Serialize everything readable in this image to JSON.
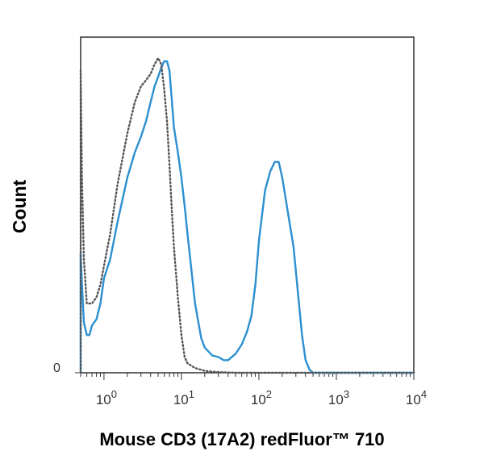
{
  "chart_data": {
    "type": "line",
    "xlabel": "Mouse CD3 (17A2) redFluor™ 710",
    "ylabel": "Count",
    "x_scale": "log",
    "xlim": [
      0.5,
      10000
    ],
    "ylim": [
      0,
      100
    ],
    "y_ticks": [
      {
        "value": 0,
        "label": "0"
      }
    ],
    "x_ticks": [
      {
        "value": 1,
        "base": "10",
        "exp": "0"
      },
      {
        "value": 10,
        "base": "10",
        "exp": "1"
      },
      {
        "value": 100,
        "base": "10",
        "exp": "2"
      },
      {
        "value": 1000,
        "base": "10",
        "exp": "3"
      },
      {
        "value": 10000,
        "base": "10",
        "exp": "4"
      }
    ],
    "grid": false,
    "series": [
      {
        "style": "solid",
        "color": "#2b8fd0",
        "points": [
          [
            0.5,
            0
          ],
          [
            0.5,
            38
          ],
          [
            0.52,
            28
          ],
          [
            0.55,
            16
          ],
          [
            0.6,
            12
          ],
          [
            0.65,
            12
          ],
          [
            0.7,
            15
          ],
          [
            0.8,
            17
          ],
          [
            0.9,
            22
          ],
          [
            1.0,
            30
          ],
          [
            1.2,
            36
          ],
          [
            1.5,
            48
          ],
          [
            2.0,
            62
          ],
          [
            2.5,
            70
          ],
          [
            3.0,
            75
          ],
          [
            3.5,
            80
          ],
          [
            4.0,
            86
          ],
          [
            4.5,
            91
          ],
          [
            5.0,
            94
          ],
          [
            5.5,
            97
          ],
          [
            6.0,
            99
          ],
          [
            6.5,
            99
          ],
          [
            7.0,
            96
          ],
          [
            7.5,
            87
          ],
          [
            8.0,
            78
          ],
          [
            9.0,
            70
          ],
          [
            10.0,
            62
          ],
          [
            11.0,
            53
          ],
          [
            12.0,
            44
          ],
          [
            13.0,
            36
          ],
          [
            15.0,
            22
          ],
          [
            18.0,
            11
          ],
          [
            20.0,
            8
          ],
          [
            25.0,
            5.5
          ],
          [
            30.0,
            5
          ],
          [
            35.0,
            4
          ],
          [
            40.0,
            4
          ],
          [
            50.0,
            6
          ],
          [
            60.0,
            9
          ],
          [
            70.0,
            13
          ],
          [
            80.0,
            18
          ],
          [
            90.0,
            28
          ],
          [
            100.0,
            42
          ],
          [
            120.0,
            58
          ],
          [
            140.0,
            64
          ],
          [
            160.0,
            67
          ],
          [
            180.0,
            67
          ],
          [
            200.0,
            62
          ],
          [
            240.0,
            50
          ],
          [
            280.0,
            40
          ],
          [
            320.0,
            25
          ],
          [
            360.0,
            12
          ],
          [
            400.0,
            4
          ],
          [
            450.0,
            1
          ],
          [
            500.0,
            0
          ],
          [
            10000.0,
            0
          ]
        ]
      },
      {
        "style": "dotted",
        "color": "#555555",
        "points": [
          [
            0.5,
            0
          ],
          [
            0.5,
            96
          ],
          [
            0.52,
            62
          ],
          [
            0.55,
            36
          ],
          [
            0.6,
            22
          ],
          [
            0.7,
            22
          ],
          [
            0.8,
            24
          ],
          [
            0.9,
            28
          ],
          [
            1.0,
            34
          ],
          [
            1.2,
            44
          ],
          [
            1.5,
            60
          ],
          [
            2.0,
            76
          ],
          [
            2.5,
            86
          ],
          [
            3.0,
            91
          ],
          [
            3.5,
            93
          ],
          [
            4.0,
            95
          ],
          [
            4.5,
            98
          ],
          [
            5.0,
            100
          ],
          [
            5.5,
            98
          ],
          [
            6.0,
            90
          ],
          [
            6.5,
            80
          ],
          [
            7.0,
            66
          ],
          [
            7.5,
            52
          ],
          [
            8.0,
            40
          ],
          [
            9.0,
            24
          ],
          [
            10.0,
            12
          ],
          [
            11.0,
            5
          ],
          [
            12.0,
            3
          ],
          [
            15.0,
            1.5
          ],
          [
            20.0,
            0.6
          ],
          [
            30.0,
            0.2
          ],
          [
            50.0,
            0
          ],
          [
            10000.0,
            0
          ]
        ]
      }
    ]
  }
}
